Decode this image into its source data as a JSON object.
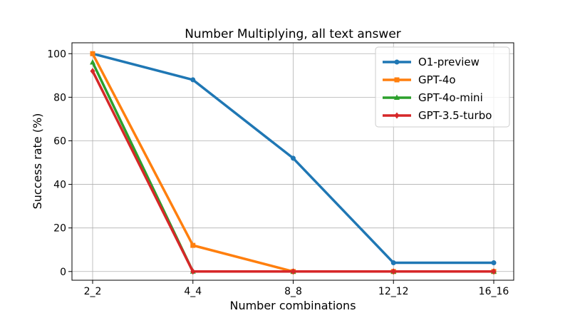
{
  "chart_data": {
    "type": "line",
    "title": "Number Multiplying, all text answer",
    "xlabel": "Number combinations",
    "ylabel": "Success rate (%)",
    "categories": [
      "2_2",
      "4_4",
      "8_8",
      "12_12",
      "16_16"
    ],
    "ylim": [
      -4,
      105
    ],
    "yticks": [
      0,
      20,
      40,
      60,
      80,
      100
    ],
    "grid": true,
    "legend_position": "top-right",
    "series": [
      {
        "name": "O1-preview",
        "color": "#1f77b4",
        "marker": "circle",
        "values": [
          100,
          88,
          52,
          4,
          4
        ]
      },
      {
        "name": "GPT-4o",
        "color": "#ff7f0e",
        "marker": "square",
        "values": [
          100,
          12,
          0,
          0,
          0
        ]
      },
      {
        "name": "GPT-4o-mini",
        "color": "#2ca02c",
        "marker": "triangle",
        "values": [
          96,
          0,
          0,
          0,
          0
        ]
      },
      {
        "name": "GPT-3.5-turbo",
        "color": "#d62728",
        "marker": "diamond",
        "values": [
          92,
          0,
          0,
          0,
          0
        ]
      }
    ]
  }
}
